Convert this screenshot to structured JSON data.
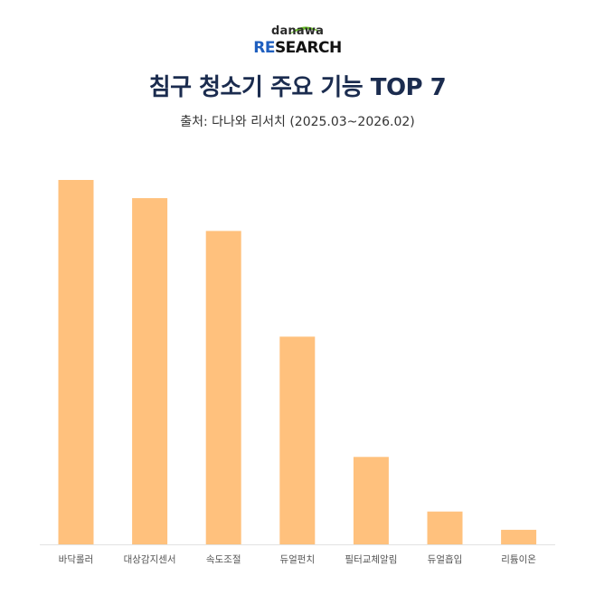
{
  "logo": {
    "top_text": "danawa",
    "main_accent": "RE",
    "main_rest": "SEARCH",
    "accent_color": "#1f5fbf",
    "swoosh_color": "#6cbf2d"
  },
  "header": {
    "title": "침구 청소기 주요 기능 TOP 7",
    "source": "출처: 다나와 리서치 (2025.03~2026.02)"
  },
  "chart_data": {
    "type": "bar",
    "title": "침구 청소기 주요 기능 TOP 7",
    "subtitle": "출처: 다나와 리서치 (2025.03~2026.02)",
    "categories": [
      "바닥롤러",
      "대상감지센서",
      "속도조절",
      "듀얼펀치",
      "필터교체알림",
      "듀얼흡입",
      "리튬이온"
    ],
    "values": [
      100,
      95,
      86,
      57,
      24,
      9,
      4
    ],
    "ylim": [
      0,
      100
    ],
    "bar_color": "#ffc17d",
    "grid": false,
    "legend": "none"
  }
}
